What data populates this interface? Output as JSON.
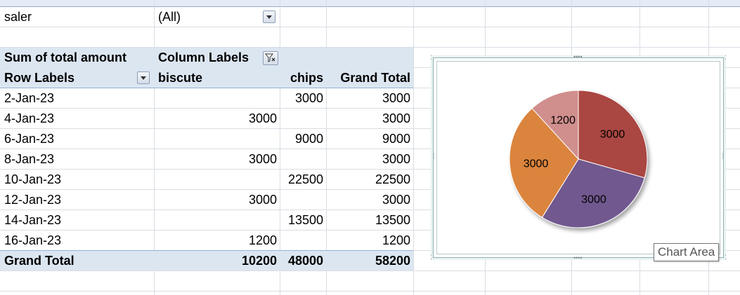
{
  "filter": {
    "label": "saler",
    "value": "(All)"
  },
  "pivot": {
    "value_header": "Sum of total amount",
    "column_labels": "Column Labels",
    "row_labels": "Row Labels",
    "columns": [
      "biscute",
      "chips",
      "Grand Total"
    ],
    "rows": [
      {
        "label": "2-Jan-23",
        "biscute": "",
        "chips": "3000",
        "total": "3000"
      },
      {
        "label": "4-Jan-23",
        "biscute": "3000",
        "chips": "",
        "total": "3000"
      },
      {
        "label": "6-Jan-23",
        "biscute": "",
        "chips": "9000",
        "total": "9000"
      },
      {
        "label": "8-Jan-23",
        "biscute": "3000",
        "chips": "",
        "total": "3000"
      },
      {
        "label": "10-Jan-23",
        "biscute": "",
        "chips": "22500",
        "total": "22500"
      },
      {
        "label": "12-Jan-23",
        "biscute": "3000",
        "chips": "",
        "total": "3000"
      },
      {
        "label": "14-Jan-23",
        "biscute": "",
        "chips": "13500",
        "total": "13500"
      },
      {
        "label": "16-Jan-23",
        "biscute": "1200",
        "chips": "",
        "total": "1200"
      }
    ],
    "grand_total": {
      "label": "Grand Total",
      "biscute": "10200",
      "chips": "48000",
      "total": "58200"
    }
  },
  "chart_data": {
    "type": "pie",
    "slices": [
      {
        "value": 3000,
        "label": "3000",
        "color": "#aa4643"
      },
      {
        "value": 3000,
        "label": "3000",
        "color": "#71588f"
      },
      {
        "value": 3000,
        "label": "3000",
        "color": "#db843d"
      },
      {
        "value": 1200,
        "label": "1200",
        "color": "#d08f8d"
      }
    ]
  },
  "chart_tooltip": "Chart Area",
  "colors": {
    "pivot_band": "#dce6f1",
    "band_line": "#95b3d7",
    "grid_line": "#d9dde3"
  }
}
